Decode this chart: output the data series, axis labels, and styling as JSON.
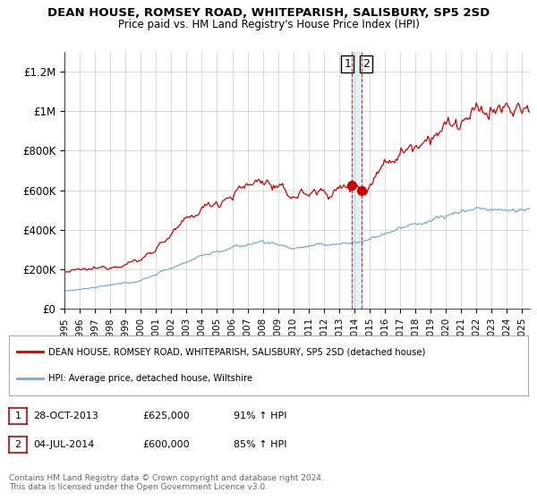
{
  "title": "DEAN HOUSE, ROMSEY ROAD, WHITEPARISH, SALISBURY, SP5 2SD",
  "subtitle": "Price paid vs. HM Land Registry's House Price Index (HPI)",
  "ylabel_ticks": [
    "£0",
    "£200K",
    "£400K",
    "£600K",
    "£800K",
    "£1M",
    "£1.2M"
  ],
  "ytick_values": [
    0,
    200000,
    400000,
    600000,
    800000,
    1000000,
    1200000
  ],
  "ylim": [
    0,
    1300000
  ],
  "xlim_start": 1995,
  "xlim_end": 2025.5,
  "red_color": "#cc0000",
  "blue_color": "#7aaacc",
  "sale1_x": 2013.83,
  "sale1_y": 625000,
  "sale2_x": 2014.5,
  "sale2_y": 600000,
  "legend_line1": "DEAN HOUSE, ROMSEY ROAD, WHITEPARISH, SALISBURY, SP5 2SD (detached house)",
  "legend_line2": "HPI: Average price, detached house, Wiltshire",
  "table_row1": [
    "1",
    "28-OCT-2013",
    "£625,000",
    "91% ↑ HPI"
  ],
  "table_row2": [
    "2",
    "04-JUL-2014",
    "£600,000",
    "85% ↑ HPI"
  ],
  "footer": "Contains HM Land Registry data © Crown copyright and database right 2024.\nThis data is licensed under the Open Government Licence v3.0.",
  "background_color": "#ffffff"
}
